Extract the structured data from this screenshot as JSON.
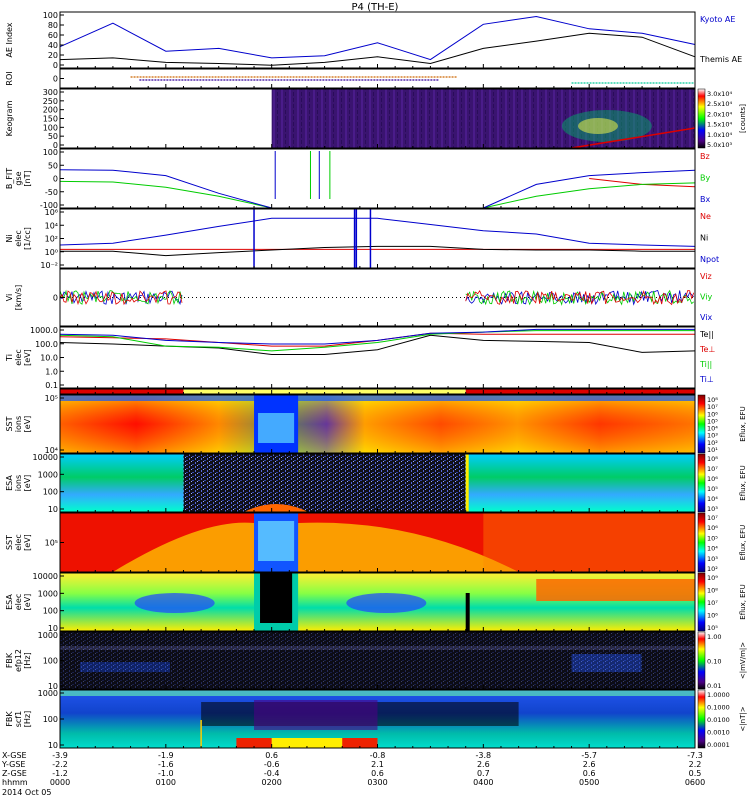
{
  "title": "P4 (TH-E)",
  "footer": {
    "row_labels": [
      "X-GSE",
      "Y-GSE",
      "Z-GSE",
      "hhmm",
      "2014 Oct 05"
    ],
    "columns": [
      {
        "values": [
          "-3.9",
          "-2.2",
          "-1.2"
        ],
        "time": "0000"
      },
      {
        "values": [
          "-1.9",
          "-1.6",
          "-1.0"
        ],
        "time": "0100"
      },
      {
        "values": [
          "0.6",
          "-0.6",
          "-0.4"
        ],
        "time": "0200"
      },
      {
        "values": [
          "-0.8",
          "2.1",
          "0.6"
        ],
        "time": "0300"
      },
      {
        "values": [
          "-3.8",
          "2.6",
          "0.7"
        ],
        "time": "0400"
      },
      {
        "values": [
          "-5.7",
          "2.6",
          "0.6"
        ],
        "time": "0500"
      },
      {
        "values": [
          "-7.3",
          "2.2",
          "0.5"
        ],
        "time": "0600"
      }
    ]
  },
  "colorbars": {
    "keogram": {
      "ticks": [
        "3.0x10⁴",
        "2.5x10⁴",
        "2.0x10⁴",
        "1.5x10⁴",
        "1.0x10⁴",
        "5.0x10³"
      ],
      "label": "[counts]"
    },
    "sst_i": {
      "ticks": [
        "10⁸",
        "10⁷",
        "10⁶",
        "10⁵",
        "10⁴",
        "10³",
        "10²",
        "10¹"
      ],
      "label": "Eflux, EFU"
    },
    "esa_i": {
      "ticks": [
        "10⁸",
        "10⁷",
        "10⁶",
        "10⁵",
        "10⁴",
        "10³"
      ],
      "label": "Eflux, EFU"
    },
    "sst_e": {
      "ticks": [
        "10⁷",
        "10⁶",
        "10⁵",
        "10⁴",
        "10³",
        "10²"
      ],
      "label": "Eflux, EFU"
    },
    "esa_e": {
      "ticks": [
        "10⁹",
        "10⁸",
        "10⁷",
        "10⁶",
        "10⁵"
      ],
      "label": "Eflux, EFU"
    },
    "fbk_e": {
      "ticks": [
        "1.00",
        "0.10",
        "0.01"
      ],
      "label": "<|mV/m|>"
    },
    "fbk_b": {
      "ticks": [
        "1.0000",
        "0.1000",
        "0.0100",
        "0.0010",
        "0.0001"
      ],
      "label": "<|nT|>"
    }
  },
  "chart_data": [
    {
      "type": "line",
      "panel": "ae",
      "ylabel": "AE Index",
      "ylim": [
        0,
        100
      ],
      "yticks": [
        "100",
        "80",
        "60",
        "40",
        "20",
        "0"
      ],
      "x": [
        "0000",
        "0030",
        "0100",
        "0130",
        "0200",
        "0230",
        "0300",
        "0330",
        "0400",
        "0430",
        "0500",
        "0530",
        "0600"
      ],
      "series": [
        {
          "name": "Kyoto AE",
          "color": "#0000cc",
          "values": [
            38,
            80,
            30,
            35,
            18,
            22,
            45,
            15,
            78,
            92,
            70,
            62,
            42
          ]
        },
        {
          "name": "Themis AE",
          "color": "#000000",
          "values": [
            15,
            18,
            10,
            8,
            5,
            10,
            20,
            8,
            35,
            48,
            62,
            55,
            20
          ]
        }
      ]
    },
    {
      "type": "timeline",
      "panel": "roi",
      "ylabel": "ROI",
      "yticks": [
        "0"
      ],
      "bars": [
        {
          "color": "#cc6600",
          "start": "0040",
          "end": "0345"
        },
        {
          "color": "#330099",
          "start": "0045",
          "end": "0335"
        },
        {
          "color": "#00cc99",
          "start": "0450",
          "end": "0600"
        }
      ]
    },
    {
      "type": "heatmap",
      "panel": "keogram",
      "ylabel": "Keogram",
      "ylim": [
        0,
        300
      ],
      "yticks": [
        "300",
        "250",
        "200",
        "150",
        "100",
        "50",
        "0"
      ],
      "coverage": {
        "start": "0200",
        "end": "0600"
      }
    },
    {
      "type": "line",
      "panel": "bfit",
      "ylabel": "B_FIT\ngse\n[nT]",
      "ylim": [
        -100,
        100
      ],
      "yticks": [
        "100",
        "50",
        "0",
        "-50",
        "-100"
      ],
      "x": [
        "0000",
        "0030",
        "0100",
        "0130",
        "0200",
        "0230",
        "0300",
        "0330",
        "0400",
        "0430",
        "0500",
        "0530",
        "0600"
      ],
      "series": [
        {
          "name": "Bz",
          "color": "#dd0000",
          "values": [
            null,
            null,
            null,
            null,
            null,
            null,
            null,
            null,
            null,
            null,
            0,
            -20,
            -28
          ]
        },
        {
          "name": "By",
          "color": "#00cc00",
          "values": [
            -10,
            -12,
            -30,
            -60,
            -100,
            null,
            null,
            null,
            -100,
            -60,
            -35,
            -20,
            -15
          ]
        },
        {
          "name": "Bx",
          "color": "#0000cc",
          "values": [
            30,
            28,
            10,
            -50,
            -100,
            null,
            null,
            null,
            -100,
            -20,
            10,
            20,
            28
          ]
        }
      ]
    },
    {
      "type": "line",
      "panel": "density",
      "ylabel": "Ni\nelec\n[1/cc]",
      "yscale": "log",
      "yticks": [
        "10⁶",
        "10⁴",
        "10²",
        "10⁰",
        "10⁻²"
      ],
      "x": [
        "0000",
        "0030",
        "0100",
        "0130",
        "0200",
        "0230",
        "0300",
        "0330",
        "0400",
        "0430",
        "0500",
        "0530",
        "0600"
      ],
      "series": [
        {
          "name": "Ne",
          "color": "#dd0000",
          "values": [
            1,
            1,
            1,
            1,
            1,
            1,
            1,
            1,
            1,
            1,
            1,
            1,
            1
          ]
        },
        {
          "name": "Ni",
          "color": "#000000",
          "values": [
            0.5,
            0.5,
            0.1,
            0.3,
            0.8,
            2,
            3,
            3,
            1,
            0.8,
            0.8,
            0.5,
            0.5
          ]
        },
        {
          "name": "Npot",
          "color": "#0000cc",
          "values": [
            5,
            10,
            200,
            5000,
            100000,
            100000,
            100000,
            10000,
            1000,
            300,
            10,
            5,
            3
          ]
        }
      ]
    },
    {
      "type": "line",
      "panel": "velocity",
      "ylabel": "Vi\n[km/s]",
      "yticks": [
        "0"
      ],
      "x": [
        "0000",
        "0030",
        "0100",
        "0130",
        "0200",
        "0230",
        "0300",
        "0330",
        "0400",
        "0430",
        "0500",
        "0530",
        "0600"
      ],
      "series": [
        {
          "name": "Viz",
          "color": "#dd0000",
          "values": [
            0,
            0,
            0,
            null,
            null,
            null,
            null,
            0,
            0,
            0,
            0,
            0,
            0
          ]
        },
        {
          "name": "Viy",
          "color": "#00cc00",
          "values": [
            0,
            0,
            0,
            null,
            null,
            null,
            null,
            0,
            0,
            0,
            0,
            0,
            0
          ]
        },
        {
          "name": "Vix",
          "color": "#0000cc",
          "values": [
            0,
            0,
            0,
            null,
            null,
            null,
            null,
            0,
            0,
            0,
            0,
            0,
            0
          ]
        }
      ]
    },
    {
      "type": "line",
      "panel": "temperature",
      "ylabel": "Ti\nelec\n[eV]",
      "yscale": "log",
      "yticks": [
        "1000.0",
        "100.0",
        "10.0",
        "1.0",
        "0.1"
      ],
      "x": [
        "0000",
        "0030",
        "0100",
        "0130",
        "0200",
        "0230",
        "0300",
        "0330",
        "0400",
        "0430",
        "0500",
        "0530",
        "0600"
      ],
      "series": [
        {
          "name": "Te||",
          "color": "#000000",
          "values": [
            200,
            150,
            100,
            70,
            20,
            20,
            50,
            800,
            300,
            250,
            200,
            30,
            40
          ]
        },
        {
          "name": "Te⊥",
          "color": "#dd0000",
          "values": [
            600,
            500,
            400,
            200,
            100,
            100,
            300,
            1200,
            1000,
            1000,
            1000,
            1000,
            1000
          ]
        },
        {
          "name": "Ti||",
          "color": "#00cc00",
          "values": [
            800,
            600,
            100,
            80,
            40,
            80,
            200,
            1000,
            1500,
            2000,
            2000,
            2000,
            2000
          ]
        },
        {
          "name": "Ti⊥",
          "color": "#0000cc",
          "values": [
            1000,
            800,
            300,
            200,
            150,
            150,
            300,
            1200,
            1500,
            2500,
            2500,
            2500,
            2500
          ]
        }
      ]
    },
    {
      "type": "timeline",
      "panel": "mode",
      "segments": [
        {
          "color": "#dd0000",
          "start": "0000",
          "end": "0110"
        },
        {
          "color": "#ffff66",
          "start": "0110",
          "end": "0350"
        },
        {
          "color": "#dd0000",
          "start": "0350",
          "end": "0600"
        }
      ]
    },
    {
      "type": "heatmap",
      "panel": "sst_i",
      "ylabel": "SST\nions\n[eV]",
      "yticks": [
        "10⁵",
        "10⁴"
      ]
    },
    {
      "type": "heatmap",
      "panel": "esa_i",
      "ylabel": "ESA\nions\n[eV]",
      "yticks": [
        "10000",
        "1000",
        "100",
        "10"
      ]
    },
    {
      "type": "heatmap",
      "panel": "sst_e",
      "ylabel": "SST\nelec\n[eV]",
      "yticks": [
        "10⁵"
      ]
    },
    {
      "type": "heatmap",
      "panel": "esa_e",
      "ylabel": "ESA\nelec\n[eV]",
      "yticks": [
        "10000",
        "1000",
        "100",
        "10"
      ]
    },
    {
      "type": "heatmap",
      "panel": "fbk_e",
      "ylabel": "FBK\nefp12\n[Hz]",
      "yticks": [
        "1000",
        "100",
        "10"
      ]
    },
    {
      "type": "heatmap",
      "panel": "fbk_b",
      "ylabel": "FBK\nscf1\n[Hz]",
      "yticks": [
        "1000",
        "100",
        "10"
      ]
    }
  ]
}
